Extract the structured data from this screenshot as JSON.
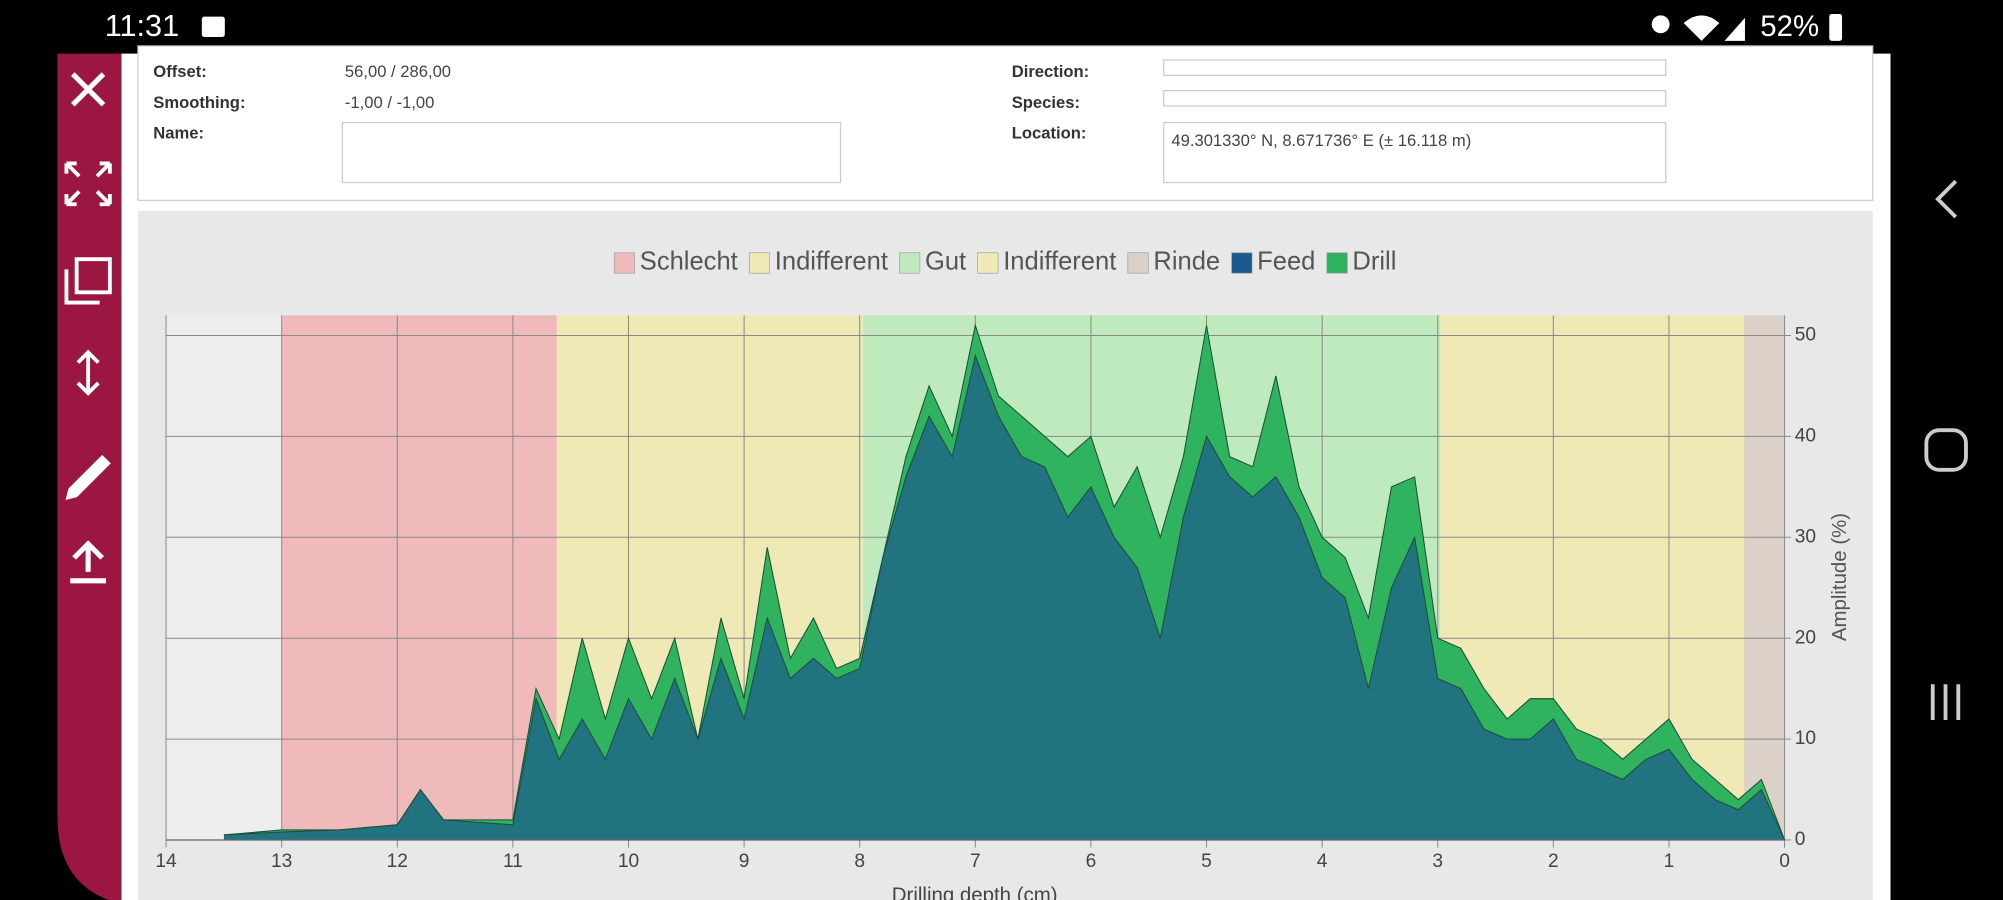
{
  "status_bar": {
    "time": "11:31",
    "battery": "52%"
  },
  "form": {
    "fields": [
      {
        "label": "Offset:",
        "value": "56,00 / 286,00"
      },
      {
        "label": "Smoothing:",
        "value": "-1,00 / -1,00"
      },
      {
        "label": "Name:"
      },
      {
        "label": "Direction:"
      },
      {
        "label": "Species:"
      },
      {
        "label": "Location:",
        "value": "49.301330° N, 8.671736° E (± 16.118 m)"
      }
    ]
  },
  "chart_data": {
    "type": "area",
    "xlabel": "Drilling depth (cm)",
    "ylabel": "Amplitude (%)",
    "xlim": [
      14,
      0
    ],
    "ylim": [
      0,
      52
    ],
    "xticks": [
      0,
      1,
      2,
      3,
      4,
      5,
      6,
      7,
      8,
      9,
      10,
      11,
      12,
      13,
      14
    ],
    "yticks": [
      0,
      10,
      20,
      30,
      40,
      50
    ],
    "grid": true,
    "legend": "top",
    "bands": [
      {
        "name": "Schlecht",
        "color": "#f0baba",
        "from": 13,
        "to": 10.62
      },
      {
        "name": "Indifferent",
        "color": "#efe9b6",
        "from": 10.62,
        "to": 7.97
      },
      {
        "name": "Gut",
        "color": "#bfeabd",
        "from": 7.97,
        "to": 2.98
      },
      {
        "name": "Indifferent",
        "color": "#efe9b6",
        "from": 2.98,
        "to": 0.35
      },
      {
        "name": "Rinde",
        "color": "#dbd1c8",
        "from": 0.35,
        "to": 0
      }
    ],
    "x": [
      13.5,
      13,
      12.5,
      12,
      11.8,
      11.6,
      11,
      10.8,
      10.6,
      10.4,
      10.2,
      10,
      9.8,
      9.6,
      9.4,
      9.2,
      9,
      8.8,
      8.6,
      8.4,
      8.2,
      8,
      7.8,
      7.6,
      7.4,
      7.2,
      7,
      6.8,
      6.6,
      6.4,
      6.2,
      6,
      5.8,
      5.6,
      5.4,
      5.2,
      5,
      4.8,
      4.6,
      4.4,
      4.2,
      4,
      3.8,
      3.6,
      3.4,
      3.2,
      3,
      2.8,
      2.6,
      2.4,
      2.2,
      2,
      1.8,
      1.6,
      1.4,
      1.2,
      1,
      0.8,
      0.6,
      0.4,
      0.2,
      0
    ],
    "series": [
      {
        "name": "Feed",
        "color": "#1b5a8c",
        "values": [
          0.5,
          0.8,
          1,
          1.5,
          5,
          2,
          1.5,
          14,
          8,
          12,
          8,
          14,
          10,
          16,
          10,
          18,
          12,
          22,
          16,
          18,
          16,
          17,
          28,
          36,
          42,
          38,
          48,
          42,
          38,
          37,
          32,
          35,
          30,
          27,
          20,
          32,
          40,
          36,
          34,
          36,
          32,
          26,
          24,
          15,
          25,
          30,
          16,
          15,
          11,
          10,
          10,
          12,
          8,
          7,
          6,
          8,
          9,
          6,
          4,
          3,
          5,
          0
        ]
      },
      {
        "name": "Drill",
        "color": "#2fb35f",
        "values": [
          0.5,
          1,
          1,
          1.5,
          5,
          2,
          2,
          15,
          10,
          20,
          12,
          20,
          14,
          20,
          10,
          22,
          14,
          29,
          18,
          22,
          17,
          18,
          28,
          38,
          45,
          40,
          51,
          44,
          42,
          40,
          38,
          40,
          33,
          37,
          30,
          38,
          51,
          38,
          37,
          46,
          35,
          30,
          28,
          22,
          35,
          36,
          20,
          19,
          15,
          12,
          14,
          14,
          11,
          10,
          8,
          10,
          12,
          8,
          6,
          4,
          6,
          0
        ]
      }
    ]
  }
}
